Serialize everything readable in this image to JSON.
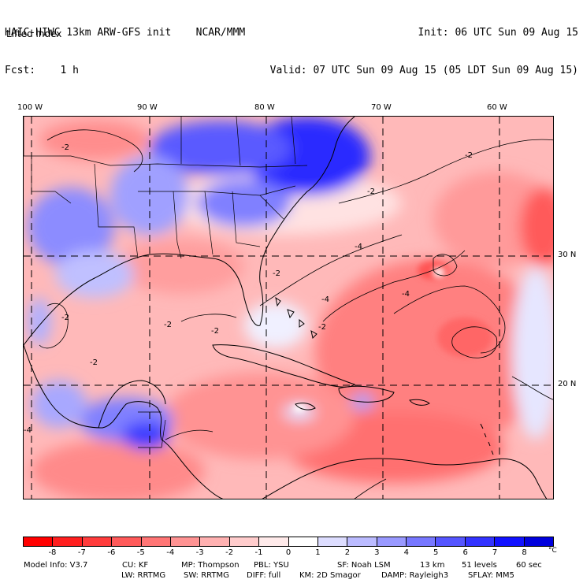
{
  "header": {
    "model_line": "HAIC-HIWC 13km ARW-GFS init    NCAR/MMM",
    "fcst_line": "Fcst:    1 h",
    "init_line": "Init: 06 UTC Sun 09 Aug 15",
    "valid_line": "Valid: 07 UTC Sun 09 Aug 15 (05 LDT Sun 09 Aug 15)",
    "field_name": "Lifted index"
  },
  "map": {
    "lon_labels": [
      "100 W",
      "90 W",
      "80 W",
      "70 W",
      "60 W"
    ],
    "lat_labels": [
      "30 N",
      "20 N"
    ],
    "colors": {
      "land_border": "#000000",
      "grid": "#000000"
    }
  },
  "colorbar": {
    "ticks": [
      "-8",
      "-7",
      "-6",
      "-5",
      "-4",
      "-3",
      "-2",
      "-1",
      "0",
      "1",
      "2",
      "3",
      "4",
      "5",
      "6",
      "7",
      "8"
    ],
    "unit": "°C",
    "colors": [
      "#ff0000",
      "#ff1f1f",
      "#ff3c3c",
      "#ff5a5a",
      "#ff7575",
      "#ff9393",
      "#ffb1b1",
      "#ffcccc",
      "#ffeaea",
      "#ffffff",
      "#ddddff",
      "#bbbbff",
      "#9999ff",
      "#7777ff",
      "#5555ff",
      "#3333ff",
      "#1111ff",
      "#0000dd"
    ]
  },
  "footer": {
    "line1": {
      "model_info": "Model Info: V3.7",
      "cu": "CU: KF",
      "mp": "MP: Thompson",
      "pbl": "PBL: YSU",
      "sf": "SF: Noah LSM",
      "res": "13 km",
      "levels": "51 levels",
      "dt": "60 sec"
    },
    "line2": {
      "lw": "LW: RRTMG",
      "sw": "SW: RRTMG",
      "diff": "DIFF: full",
      "km": "KM: 2D Smagor",
      "damp": "DAMP: Rayleigh3",
      "sflay": "SFLAY: MM5"
    }
  }
}
